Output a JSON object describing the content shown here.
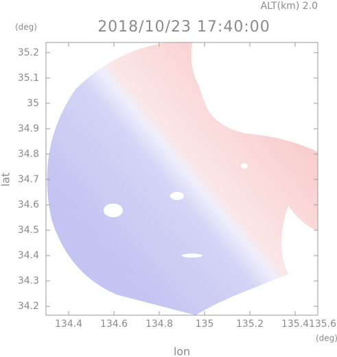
{
  "chart_data": {
    "type": "heatmap",
    "title": "2018/10/23 17:40:00",
    "subtitle": "ALT(km) 2.0",
    "x_label": "lon",
    "x_unit": "(deg)",
    "y_label": "lat",
    "y_unit": "(deg)",
    "xlim": [
      134.3,
      135.5
    ],
    "xticks": [
      134.4,
      134.6,
      134.8,
      135.0,
      135.2,
      135.4,
      135.6
    ],
    "ylim": [
      34.165,
      35.24
    ],
    "yticks": [
      34.2,
      34.3,
      34.4,
      34.5,
      34.6,
      34.7,
      34.8,
      34.9,
      35.0,
      35.1,
      35.2
    ]
  }
}
